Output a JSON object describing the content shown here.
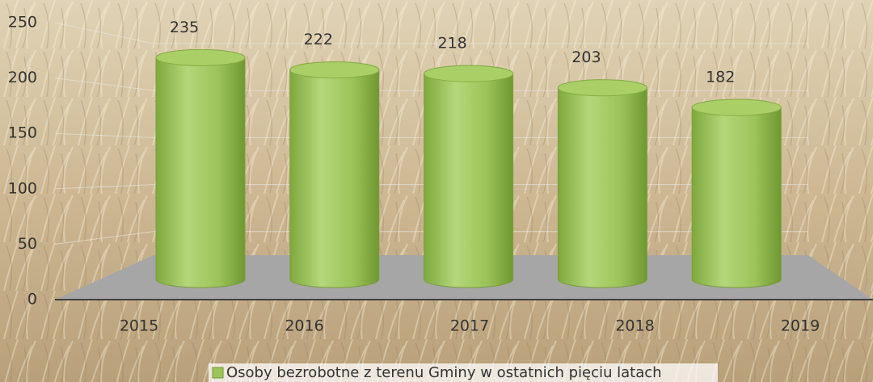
{
  "chart_data": {
    "type": "bar",
    "shape": "cylinder",
    "categories": [
      "2015",
      "2016",
      "2017",
      "2018",
      "2019"
    ],
    "series": [
      {
        "name": "Osoby bezrobotne z terenu Gminy w ostatnich pięciu latach",
        "color": "#9cc45a",
        "values": [
          235,
          222,
          218,
          203,
          182
        ]
      }
    ],
    "ylim": [
      0,
      250
    ],
    "yticks": [
      0,
      50,
      100,
      150,
      200,
      250
    ],
    "grid": true,
    "legend": "bottom"
  }
}
